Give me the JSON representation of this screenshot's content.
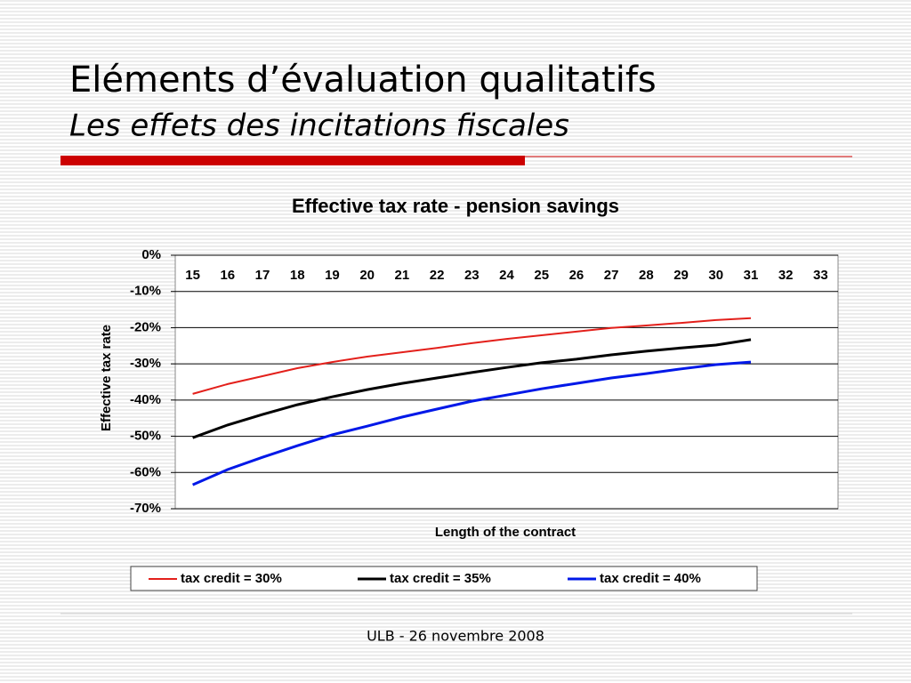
{
  "header": {
    "title": "Eléments d’évaluation qualitatifs",
    "subtitle": "Les effets des incitations fiscales"
  },
  "footer": "ULB - 26 novembre 2008",
  "chart_data": {
    "type": "line",
    "title": "Effective tax rate - pension savings",
    "x_label": "Length of the contract",
    "y_label": "Effective tax rate",
    "categories": [
      "15",
      "16",
      "17",
      "18",
      "19",
      "20",
      "21",
      "22",
      "23",
      "24",
      "25",
      "26",
      "27",
      "28",
      "29",
      "30",
      "31",
      "32",
      "33"
    ],
    "series": [
      {
        "name": "tax credit = 30%",
        "color": "#e3201b",
        "values": [
          -38.3,
          -35.6,
          -33.4,
          -31.2,
          -29.5,
          -28,
          -26.8,
          -25.6,
          -24.3,
          -23.1,
          -22.1,
          -21.1,
          -20.1,
          -19.4,
          -18.7,
          -17.9,
          -17.4,
          null,
          null
        ]
      },
      {
        "name": "tax credit = 35%",
        "color": "#000000",
        "values": [
          -50.4,
          -46.9,
          -44,
          -41.3,
          -39.1,
          -37.1,
          -35.4,
          -33.9,
          -32.4,
          -31,
          -29.7,
          -28.7,
          -27.5,
          -26.5,
          -25.6,
          -24.8,
          -23.3,
          null,
          null
        ]
      },
      {
        "name": "tax credit = 40%",
        "color": "#0018e8",
        "values": [
          -63.4,
          -59.2,
          -55.8,
          -52.6,
          -49.6,
          -47.2,
          -44.7,
          -42.5,
          -40.3,
          -38.6,
          -36.9,
          -35.4,
          -33.9,
          -32.7,
          -31.4,
          -30.2,
          -29.5,
          null,
          null
        ]
      }
    ],
    "ylim": [
      -70,
      0
    ],
    "yticks": [
      {
        "value": 0,
        "label": "0%"
      },
      {
        "value": -10,
        "label": "-10%"
      },
      {
        "value": -20,
        "label": "-20%"
      },
      {
        "value": -30,
        "label": "-30%"
      },
      {
        "value": -40,
        "label": "-40%"
      },
      {
        "value": -50,
        "label": "-50%"
      },
      {
        "value": -60,
        "label": "-60%"
      },
      {
        "value": -70,
        "label": "-70%"
      }
    ],
    "grid": true,
    "legend": "bottom"
  }
}
